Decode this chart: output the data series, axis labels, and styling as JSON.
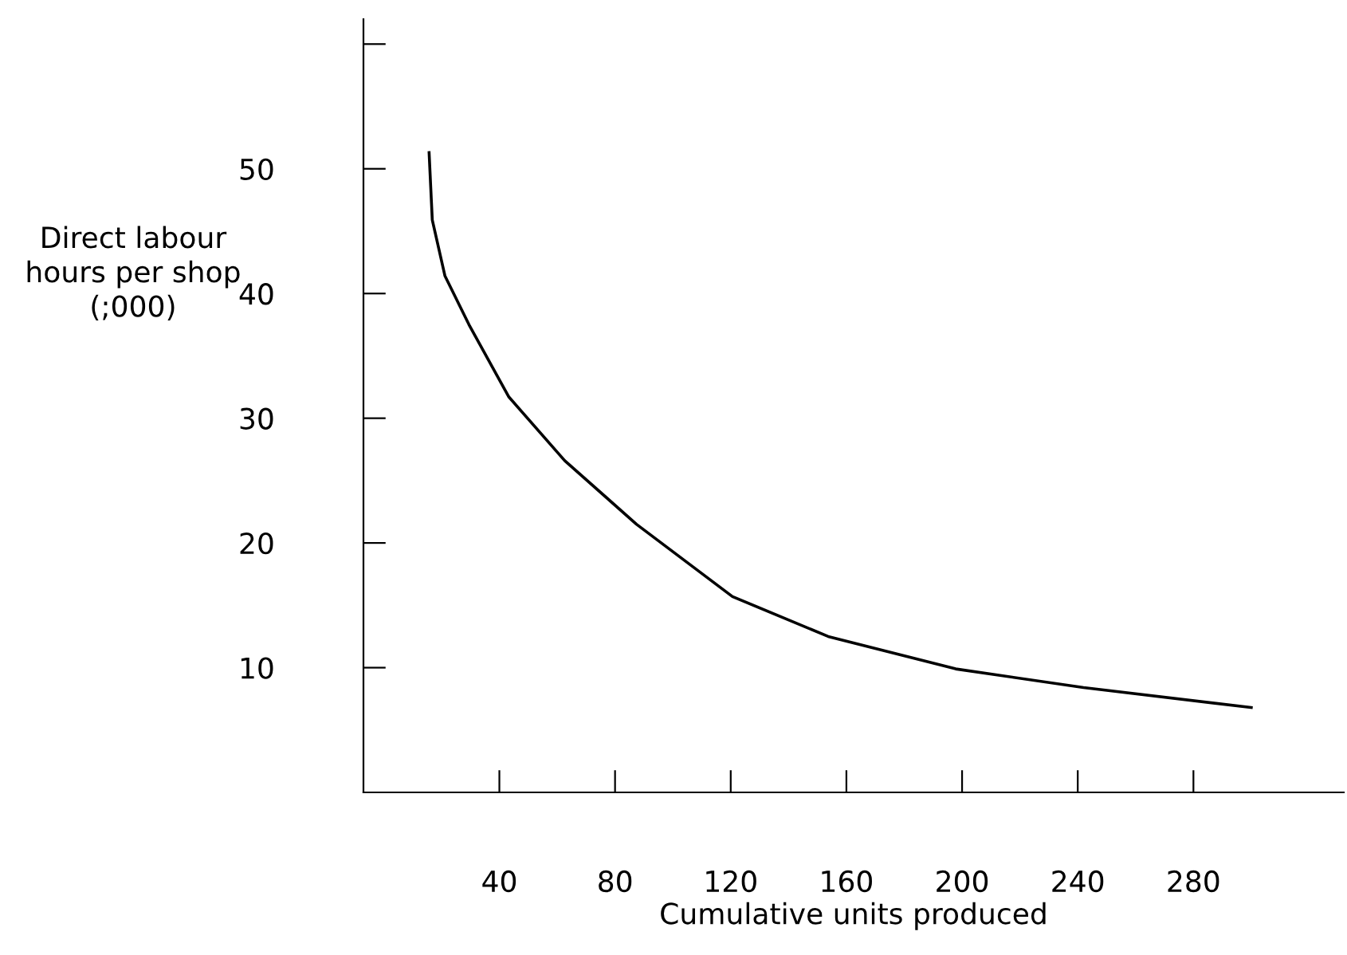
{
  "chart_data": {
    "type": "line",
    "xlabel": "Cumulative units produced",
    "ylabel": "Direct labour\nhours per shop\n(;000)",
    "x": [
      15.7,
      16.8,
      21.2,
      29.5,
      43.3,
      62.6,
      87.4,
      120.6,
      153.7,
      197.8,
      242,
      300
    ],
    "series": [
      {
        "color": "#000000",
        "values": [
          51.3,
          45.9,
          41.4,
          37.5,
          31.7,
          26.6,
          21.5,
          15.7,
          12.5,
          9.9,
          8.4,
          6.8
        ]
      }
    ],
    "xlim": [
      -7,
      332
    ],
    "ylim": [
      0,
      62
    ],
    "xticks": [
      40,
      80,
      120,
      160,
      200,
      240,
      280
    ],
    "yticks": [
      10,
      20,
      30,
      40,
      50,
      {
        "value": 60,
        "label": null
      }
    ],
    "grid": false,
    "legend": false,
    "marker": "none",
    "line_style": "solid"
  }
}
